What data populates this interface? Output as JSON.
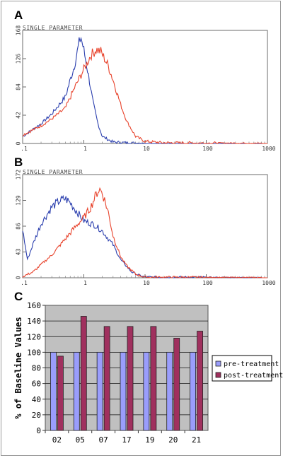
{
  "chart_data": [
    {
      "panel": "A",
      "type": "line",
      "title": "SINGLE PARAMETER",
      "xscale": "log",
      "xlim": [
        0.1,
        1000
      ],
      "x_ticks": [
        ".1",
        "1",
        "10",
        "100",
        "1000"
      ],
      "ylim": [
        0,
        160
      ],
      "y_ticks": [
        "0",
        "42",
        "84",
        "126",
        "168"
      ],
      "series": [
        {
          "color": "#2b3fae",
          "x": [
            0.1,
            0.2,
            0.3,
            0.5,
            0.7,
            0.85,
            0.9,
            1.0,
            1.2,
            1.4,
            1.7,
            2.0,
            3.0,
            5.0,
            10,
            1000
          ],
          "y": [
            10,
            28,
            42,
            66,
            110,
            145,
            150,
            132,
            95,
            60,
            28,
            10,
            2,
            1,
            0,
            0
          ]
        },
        {
          "color": "#e8432c",
          "x": [
            0.1,
            0.2,
            0.3,
            0.5,
            0.7,
            1.0,
            1.3,
            1.6,
            1.9,
            2.5,
            3.0,
            4.0,
            5.0,
            7.0,
            10,
            20,
            1000
          ],
          "y": [
            12,
            25,
            35,
            50,
            78,
            105,
            125,
            133,
            130,
            110,
            90,
            55,
            32,
            10,
            3,
            1,
            0
          ]
        }
      ]
    },
    {
      "panel": "B",
      "type": "line",
      "title": "SINGLE PARAMETER",
      "xscale": "log",
      "xlim": [
        0.1,
        1000
      ],
      "x_ticks": [
        ".1",
        "1",
        "10",
        "100",
        "1000"
      ],
      "ylim": [
        0,
        172
      ],
      "y_ticks": [
        "0",
        "43",
        "86",
        "129",
        "172"
      ],
      "series": [
        {
          "color": "#2b3fae",
          "x": [
            0.1,
            0.12,
            0.15,
            0.2,
            0.3,
            0.4,
            0.5,
            0.6,
            0.8,
            1.0,
            1.5,
            2.0,
            3.0,
            4.0,
            6.0,
            8.0,
            10,
            1000
          ],
          "y": [
            80,
            30,
            58,
            90,
            118,
            128,
            132,
            125,
            108,
            95,
            88,
            78,
            55,
            30,
            10,
            4,
            1,
            0
          ]
        },
        {
          "color": "#e8432c",
          "x": [
            0.1,
            0.15,
            0.2,
            0.3,
            0.5,
            0.8,
            1.0,
            1.3,
            1.6,
            1.8,
            2.0,
            2.5,
            3.0,
            4.0,
            5.0,
            7.0,
            10,
            1000
          ],
          "y": [
            2,
            10,
            22,
            38,
            65,
            90,
            100,
            118,
            140,
            148,
            142,
            110,
            70,
            35,
            20,
            6,
            1,
            0
          ]
        }
      ]
    },
    {
      "panel": "C",
      "type": "bar",
      "categories": [
        "02",
        "05",
        "07",
        "17",
        "19",
        "20",
        "21"
      ],
      "series": [
        {
          "name": "pre-treatment",
          "color": "#9a9dfc",
          "values": [
            100,
            100,
            100,
            100,
            100,
            100,
            100
          ]
        },
        {
          "name": "post-treatment",
          "color": "#a0305e",
          "values": [
            95,
            146,
            133,
            133,
            133,
            118,
            127
          ]
        }
      ],
      "ylabel": "% of Baseline Values",
      "ylim": [
        0,
        160
      ],
      "y_ticks": [
        "0",
        "20",
        "40",
        "60",
        "80",
        "100",
        "120",
        "140",
        "160"
      ],
      "grid": true,
      "legend": "right",
      "plot_background": "#c0c0c0"
    }
  ]
}
